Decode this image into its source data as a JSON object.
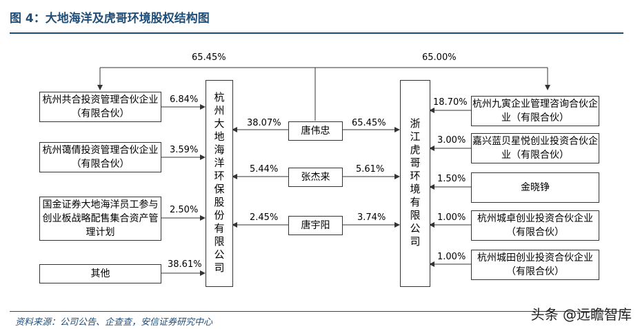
{
  "title": "图 4：大地海洋及虎哥环境股权结构图",
  "source": "资料来源：公司公告、企查查，安信证券研究中心",
  "watermark": "头条 @远瞻智库",
  "companies": {
    "dadi": "杭州大地海洋环保股份有限公司",
    "hugo": "浙江虎哥环境有限公司"
  },
  "people": [
    {
      "name": "唐伟忠",
      "dadi_pct": "38.07%",
      "hugo_pct": "65.45%"
    },
    {
      "name": "张杰来",
      "dadi_pct": "5.44%",
      "hugo_pct": "5.61%"
    },
    {
      "name": "唐宇阳",
      "dadi_pct": "2.45%",
      "hugo_pct": "3.74%"
    }
  ],
  "top_pct": {
    "to_dadi": "65.45%",
    "to_hugo": "65.00%"
  },
  "left_holders": [
    {
      "name": "杭州共合投资管理合伙企业（有限合伙）",
      "pct": "6.84%"
    },
    {
      "name": "杭州蔼倩投资管理合伙企业（有限合伙）",
      "pct": "3.59%"
    },
    {
      "name": "国金证券大地海洋员工参与创业板战略配售集合资产管理计划",
      "pct": "2.50%"
    },
    {
      "name": "其他",
      "pct": "38.61%"
    }
  ],
  "right_holders": [
    {
      "name": "杭州九寅企业管理咨询合伙企业（有限合伙）",
      "pct": "18.70%"
    },
    {
      "name": "嘉兴蓝贝星悦创业投资合伙企业（有限合伙）",
      "pct": "3.00%"
    },
    {
      "name": "金晓铮",
      "pct": "1.50%"
    },
    {
      "name": "杭州城卓创业投资合伙企业（有限合伙）",
      "pct": "1.00%"
    },
    {
      "name": "杭州城田创业投资合伙企业（有限合伙）",
      "pct": "1.00%"
    }
  ]
}
